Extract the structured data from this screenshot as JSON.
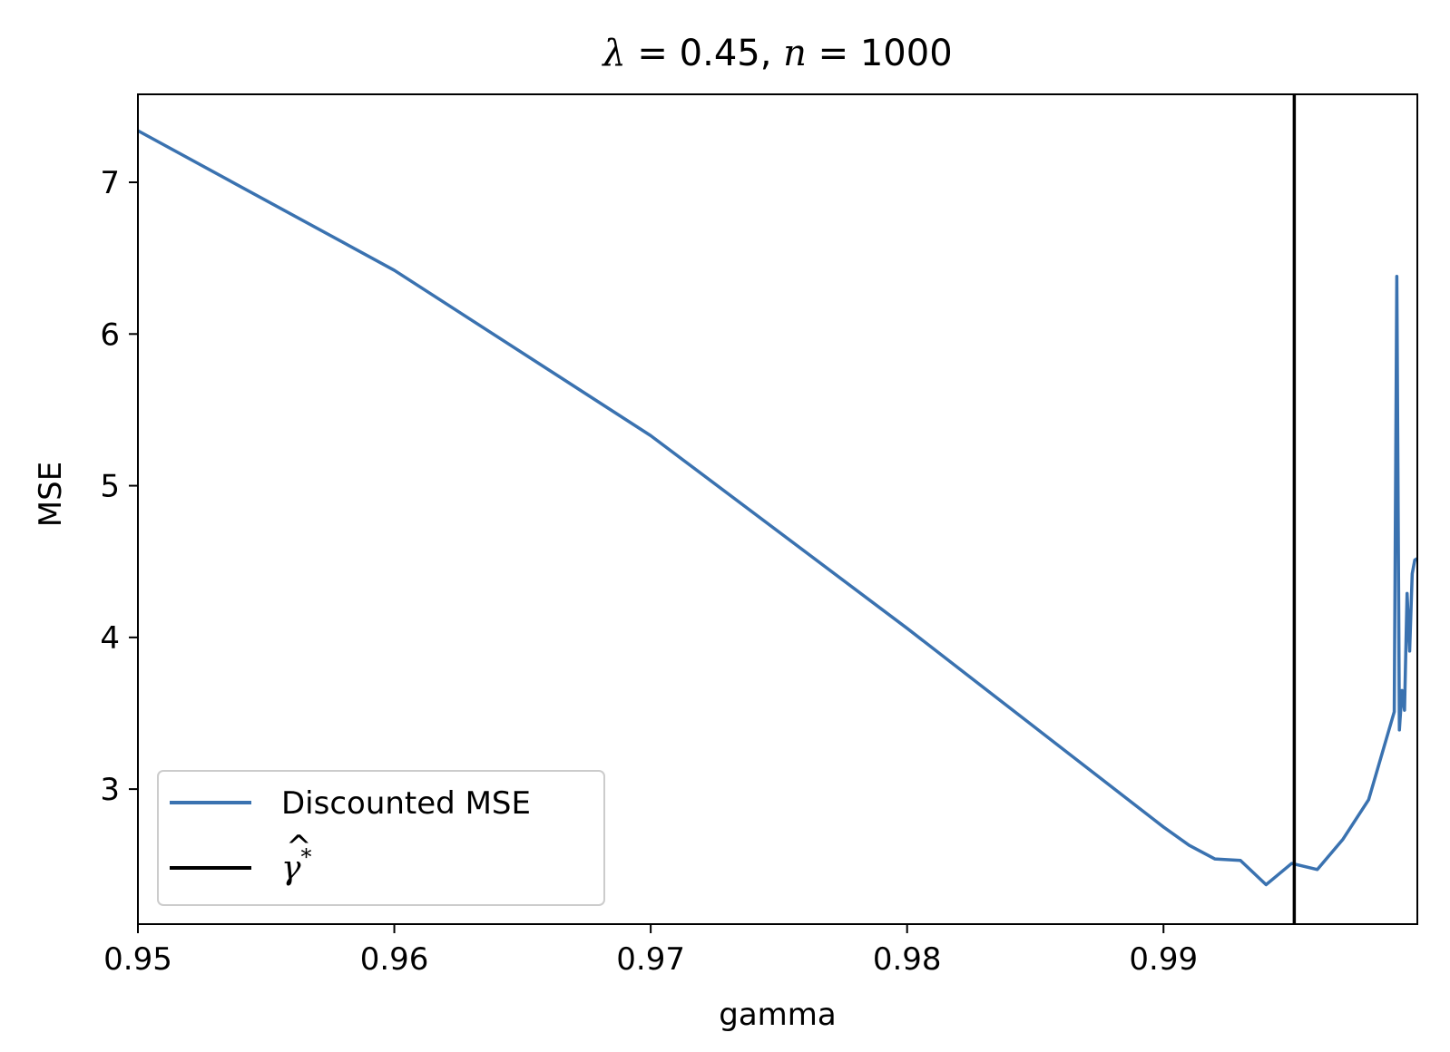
{
  "chart_data": {
    "type": "line",
    "title": "λ = 0.45, n =  1000",
    "title_parts": {
      "lambda_sym": "λ",
      "eq1": " = 0.45, ",
      "n_sym": "n",
      "eq2": " =  1000"
    },
    "xlabel": "gamma",
    "ylabel": "MSE",
    "xlim": [
      0.95,
      0.9999
    ],
    "ylim": [
      2.11,
      7.58
    ],
    "xticks": [
      0.95,
      0.96,
      0.97,
      0.98,
      0.99
    ],
    "xtick_labels": [
      "0.95",
      "0.96",
      "0.97",
      "0.98",
      "0.99"
    ],
    "yticks": [
      3,
      4,
      5,
      6,
      7
    ],
    "ytick_labels": [
      "3",
      "4",
      "5",
      "6",
      "7"
    ],
    "grid": false,
    "legend_position": "lower-left",
    "series": [
      {
        "name": "Discounted MSE",
        "color": "#3a72b0",
        "x": [
          0.95,
          0.96,
          0.97,
          0.98,
          0.99,
          0.991,
          0.992,
          0.993,
          0.994,
          0.995,
          0.996,
          0.997,
          0.998,
          0.999,
          0.9991,
          0.9992,
          0.9993,
          0.9994,
          0.9995,
          0.9996,
          0.9997,
          0.9998,
          0.9999
        ],
        "y": [
          7.34,
          6.42,
          5.33,
          4.06,
          2.75,
          2.63,
          2.54,
          2.53,
          2.37,
          2.51,
          2.47,
          2.67,
          2.93,
          3.51,
          6.38,
          3.39,
          3.65,
          3.52,
          4.29,
          3.91,
          4.42,
          4.51,
          4.52
        ]
      }
    ],
    "vline": {
      "name": "γ̂*",
      "label_parts": {
        "base": "γ",
        "hat": "^",
        "sup": "*"
      },
      "x": 0.9951,
      "color": "#000000"
    }
  }
}
